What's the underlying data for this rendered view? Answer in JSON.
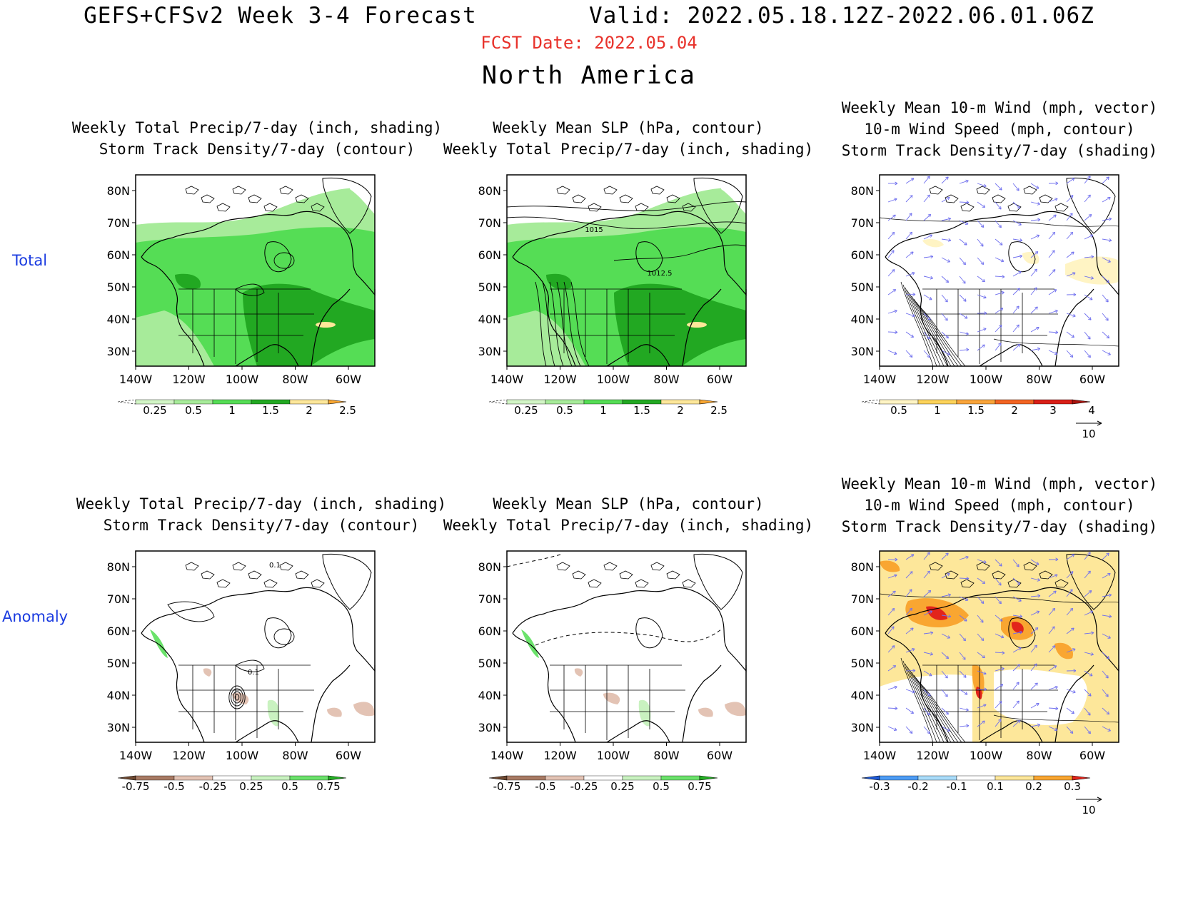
{
  "header": {
    "title": "GEFS+CFSv2 Week 3-4 Forecast",
    "valid": "Valid: 2022.05.18.12Z-2022.06.01.06Z",
    "fcst_date": "FCST Date: 2022.05.04",
    "region": "North America"
  },
  "row_labels": {
    "total": "Total",
    "anomaly": "Anomaly"
  },
  "axes": {
    "lat_ticks": [
      "80N",
      "70N",
      "60N",
      "50N",
      "40N",
      "30N"
    ],
    "lon_ticks": [
      "140W",
      "120W",
      "100W",
      "80W",
      "60W"
    ]
  },
  "colors": {
    "precip": [
      "#d2f5c6",
      "#a7eb9a",
      "#55dd55",
      "#22a822",
      "#fde79a",
      "#f9a631",
      "#e2241b"
    ],
    "anom_precip": [
      "#6e4830",
      "#a87a64",
      "#e3c3b4",
      "#ffffff",
      "#c9f2c0",
      "#6be26b",
      "#24b024"
    ],
    "track": [
      "#fff4c4",
      "#fcd35a",
      "#f9a43a",
      "#f26422",
      "#d91f17",
      "#a8140e"
    ],
    "anom_track": [
      "#1e5ad8",
      "#4d9cf5",
      "#a9dcfa",
      "#ffffff",
      "#fde79a",
      "#f9a631",
      "#e2241b"
    ],
    "wind_vector": "#7070ee"
  },
  "panels": {
    "total_precip": {
      "title_lines": [
        "Weekly Total Precip/7-day (inch, shading)",
        "Storm Track Density/7-day (contour)"
      ],
      "colorbar_labels": [
        "0.25",
        "0.5",
        "1",
        "1.5",
        "2",
        "2.5"
      ]
    },
    "total_slp": {
      "title_lines": [
        "Weekly Mean SLP (hPa, contour)",
        "Weekly Total Precip/7-day (inch, shading)"
      ],
      "colorbar_labels": [
        "0.25",
        "0.5",
        "1",
        "1.5",
        "2",
        "2.5"
      ],
      "contour_labels": [
        "1015",
        "1012.5"
      ]
    },
    "total_wind": {
      "title_lines": [
        "Weekly Mean 10-m Wind (mph, vector)",
        "10-m Wind Speed (mph, contour)",
        "Storm Track Density/7-day (shading)"
      ],
      "colorbar_labels": [
        "0.5",
        "1",
        "1.5",
        "2",
        "3",
        "4"
      ],
      "vector_ref": "10"
    },
    "anom_precip": {
      "title_lines": [
        "Weekly Total Precip/7-day (inch, shading)",
        "Storm Track Density/7-day (contour)"
      ],
      "colorbar_labels": [
        "-0.75",
        "-0.5",
        "-0.25",
        "0.25",
        "0.5",
        "0.75"
      ],
      "contour_labels": [
        "0.1",
        "0.1"
      ]
    },
    "anom_slp": {
      "title_lines": [
        "Weekly Mean SLP (hPa, contour)",
        "Weekly Total Precip/7-day (inch, shading)"
      ],
      "colorbar_labels": [
        "-0.75",
        "-0.5",
        "-0.25",
        "0.25",
        "0.5",
        "0.75"
      ]
    },
    "anom_wind": {
      "title_lines": [
        "Weekly Mean 10-m Wind (mph, vector)",
        "10-m Wind Speed (mph, contour)",
        "Storm Track Density/7-day (shading)"
      ],
      "colorbar_labels": [
        "-0.3",
        "-0.2",
        "-0.1",
        "0.1",
        "0.2",
        "0.3"
      ],
      "vector_ref": "10"
    }
  }
}
